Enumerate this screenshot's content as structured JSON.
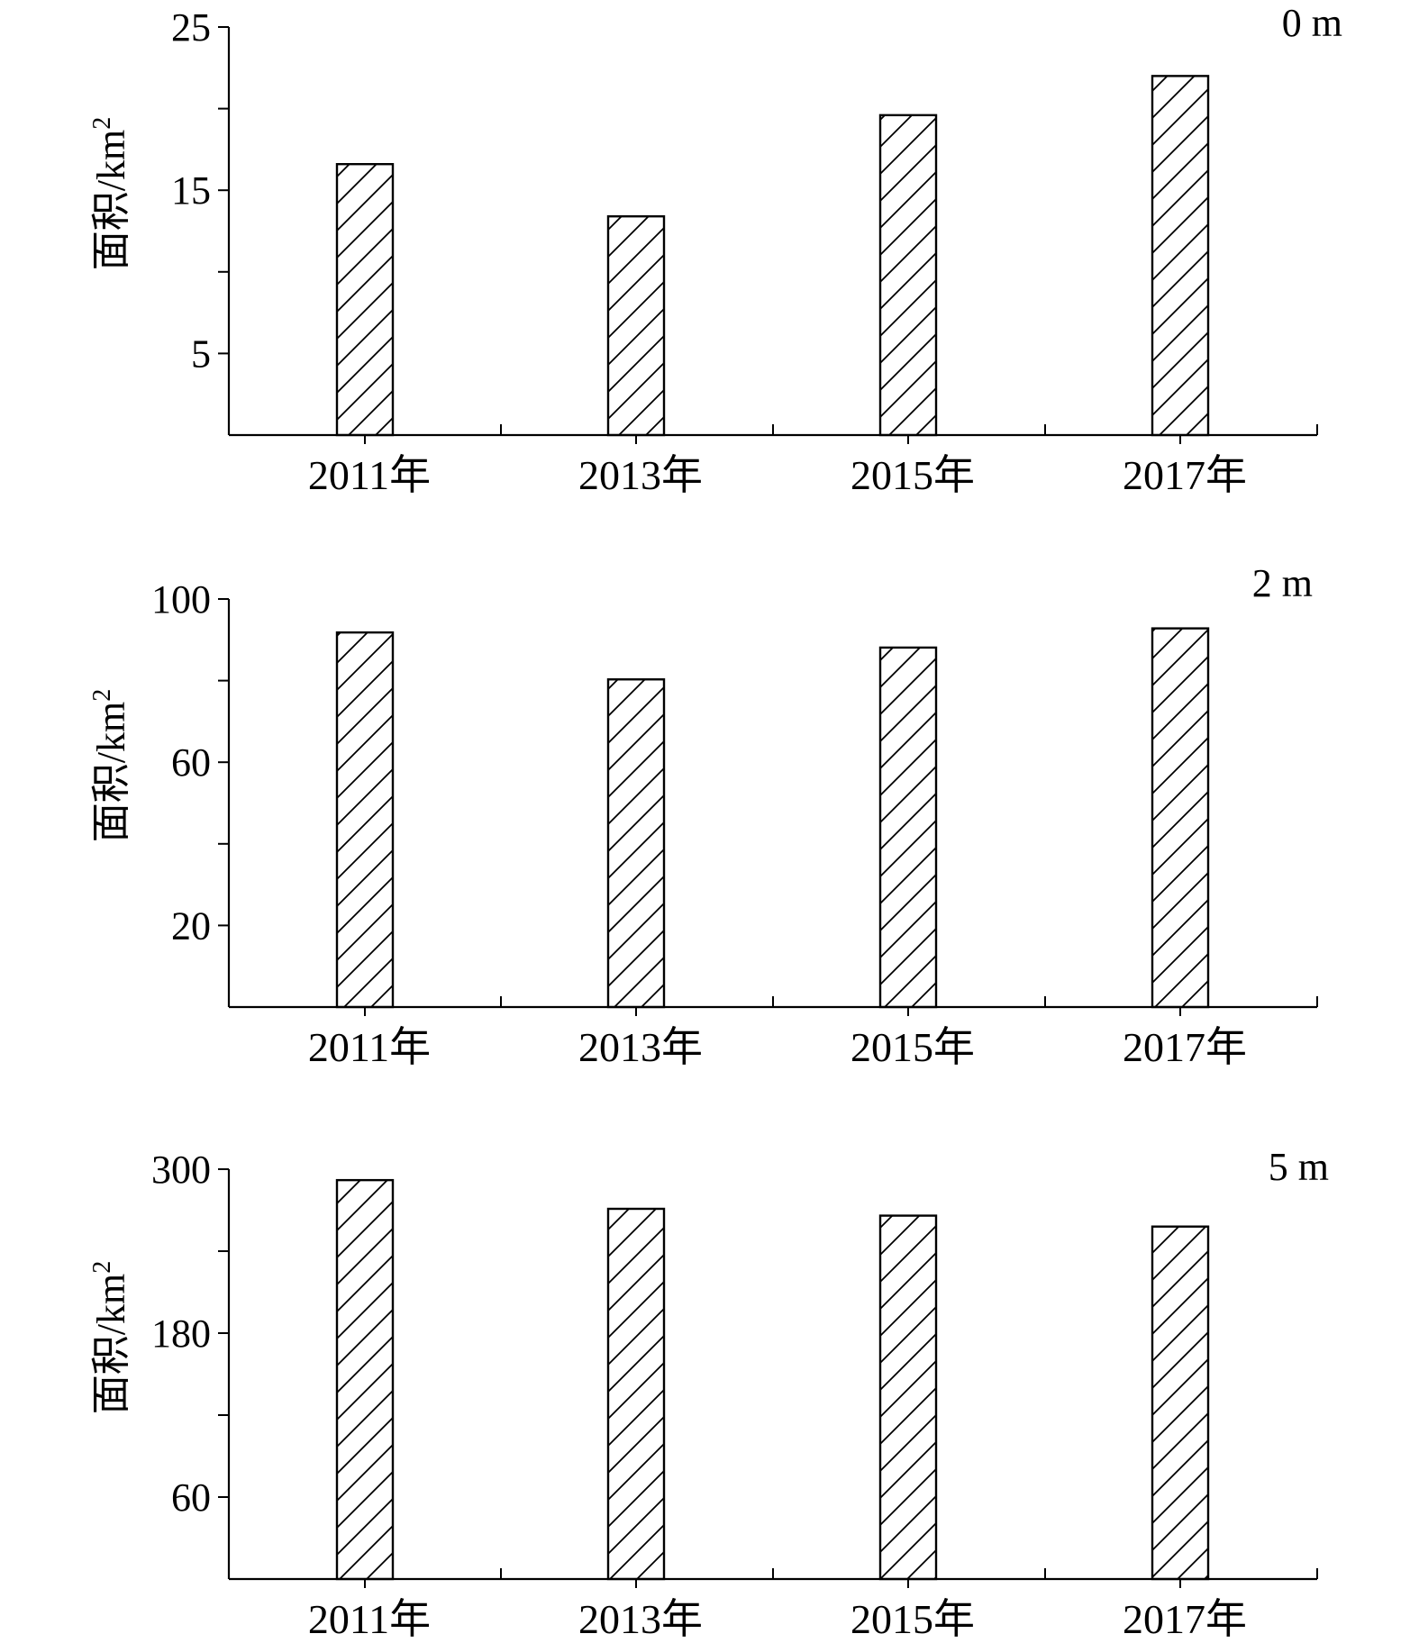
{
  "chart_data": [
    {
      "type": "bar",
      "panel_label": "0 m",
      "categories": [
        "2011年",
        "2013年",
        "2015年",
        "2017年"
      ],
      "values": [
        16.6,
        13.4,
        19.6,
        22.0
      ],
      "ylabel_main": "面积/km",
      "ylabel_sup": "2",
      "ylim": [
        0,
        25
      ],
      "yticks_major": [
        5,
        15,
        25
      ],
      "yticks_minor": [
        10,
        20
      ],
      "hatch": "diagonal"
    },
    {
      "type": "bar",
      "panel_label": "2 m",
      "categories": [
        "2011年",
        "2013年",
        "2015年",
        "2017年"
      ],
      "values": [
        91.8,
        80.3,
        88.1,
        92.8
      ],
      "ylabel_main": "面积/km",
      "ylabel_sup": "2",
      "ylim": [
        0,
        100
      ],
      "yticks_major": [
        20,
        60,
        100
      ],
      "yticks_minor": [
        40,
        80
      ],
      "hatch": "diagonal"
    },
    {
      "type": "bar",
      "panel_label": "5 m",
      "categories": [
        "2011年",
        "2013年",
        "2015年",
        "2017年"
      ],
      "values": [
        292,
        271,
        266,
        258
      ],
      "ylabel_main": "面积/km",
      "ylabel_sup": "2",
      "ylim": [
        0,
        300
      ],
      "yticks_major": [
        60,
        180,
        300
      ],
      "yticks_minor": [
        120,
        240
      ],
      "hatch": "diagonal"
    }
  ]
}
